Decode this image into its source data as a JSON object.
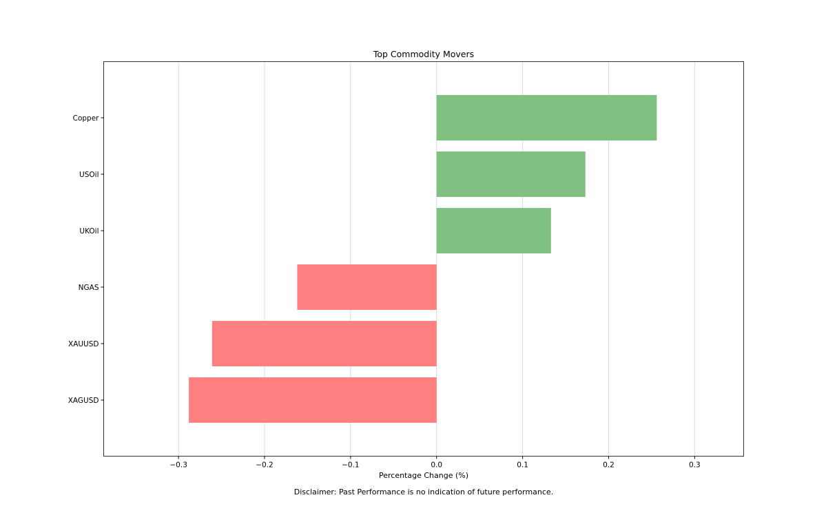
{
  "chart_data": {
    "type": "bar",
    "orientation": "horizontal",
    "title": "Top Commodity Movers",
    "xlabel": "Percentage Change (%)",
    "ylabel": "",
    "categories": [
      "Copper",
      "USOil",
      "UKOil",
      "NGAS",
      "XAUUSD",
      "XAGUSD"
    ],
    "values": [
      0.256,
      0.173,
      0.133,
      -0.162,
      -0.261,
      -0.288
    ],
    "xlim": [
      -0.387,
      0.357
    ],
    "xticks": [
      -0.3,
      -0.2,
      -0.1,
      0.0,
      0.1,
      0.2,
      0.3
    ],
    "xtick_labels": [
      "−0.3",
      "−0.2",
      "−0.1",
      "0.0",
      "0.1",
      "0.2",
      "0.3"
    ],
    "grid": "vertical",
    "colors": {
      "positive": "#80c080",
      "negative": "#ff8080",
      "grid": "#d9d9d9",
      "frame": "#333333"
    },
    "footnote": "Disclaimer: Past Performance is no indication of future performance."
  }
}
